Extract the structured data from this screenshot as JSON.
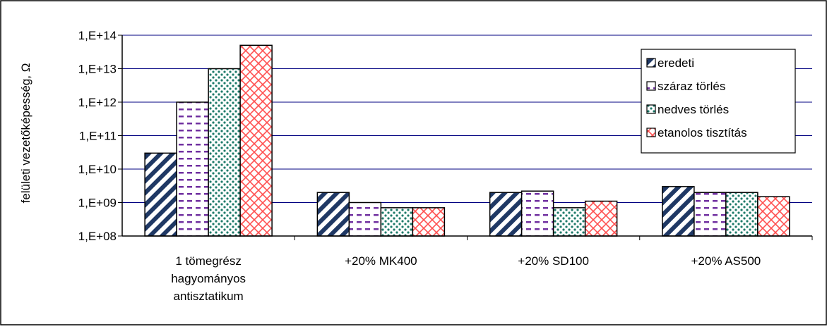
{
  "chart_data": {
    "type": "bar",
    "title": "",
    "xlabel": "",
    "ylabel": "felületi vezetőképesség, Ω",
    "y_scale": "log",
    "ylim": [
      100000000,
      100000000000000
    ],
    "y_ticks": [
      "1,E+08",
      "1,E+09",
      "1,E+10",
      "1,E+11",
      "1,E+12",
      "1,E+13",
      "1,E+14"
    ],
    "grid": "horizontal",
    "legend_position": "top-right",
    "categories": [
      [
        "1 tömegrész",
        "hagyományos",
        "antisztatikum"
      ],
      [
        "+20% MK400"
      ],
      [
        "+20% SD100"
      ],
      [
        "+20% AS500"
      ]
    ],
    "series": [
      {
        "name": "eredeti",
        "values": [
          30000000000,
          2000000000,
          2000000000,
          3000000000
        ],
        "color": "#1f3864",
        "pattern": "diagonal-stripes"
      },
      {
        "name": "száraz törlés",
        "values": [
          1000000000000,
          1000000000,
          2200000000,
          2000000000
        ],
        "color": "#7030a0",
        "pattern": "horizontal-dashes"
      },
      {
        "name": "nedves törlés",
        "values": [
          10000000000000,
          700000000,
          700000000,
          2000000000
        ],
        "color": "#1e7b6a",
        "pattern": "dots"
      },
      {
        "name": "etanolos tisztítás",
        "values": [
          50000000000000,
          700000000,
          1100000000,
          1500000000
        ],
        "color": "#ff5050",
        "pattern": "crosshatch"
      }
    ]
  }
}
